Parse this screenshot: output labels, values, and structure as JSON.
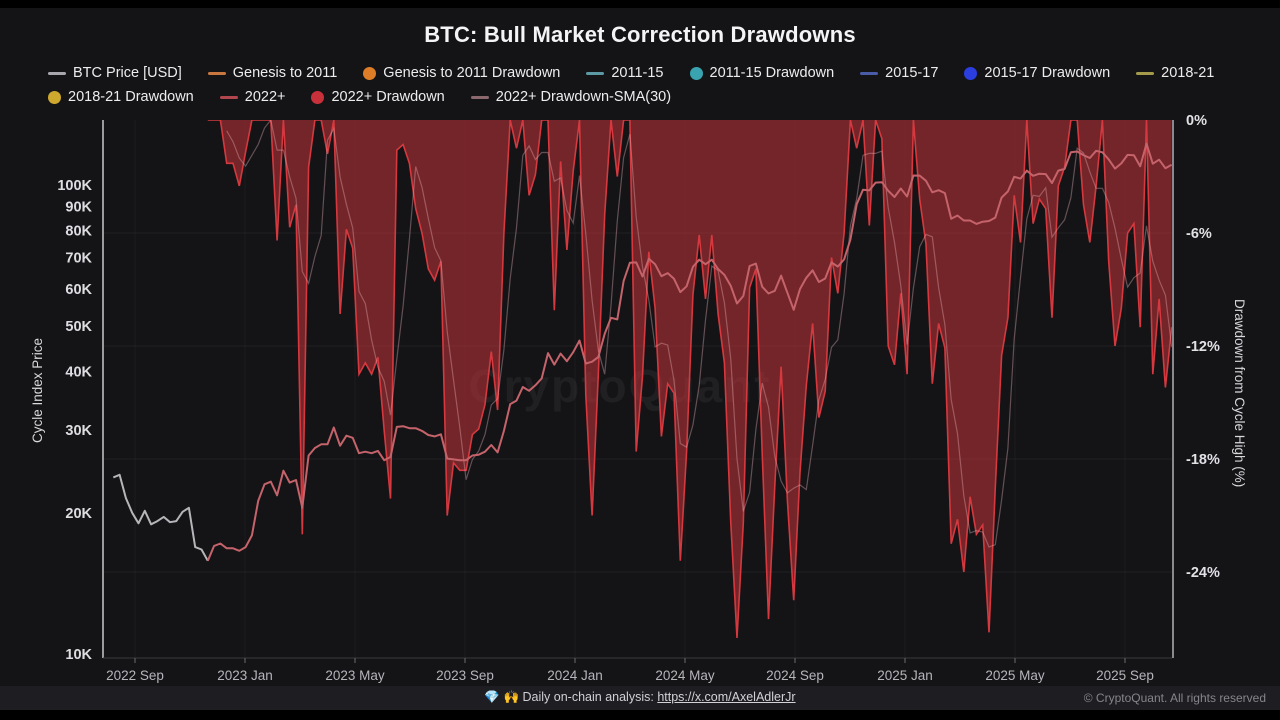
{
  "header": {
    "title": "BTC: Bull Market Correction Drawdowns"
  },
  "legend": [
    {
      "label": "BTC Price [USD]",
      "marker": "line",
      "color": "#a7a7ad",
      "row": 1
    },
    {
      "label": "Genesis to 2011",
      "marker": "line",
      "color": "#c8783f",
      "row": 1
    },
    {
      "label": "Genesis to 2011 Drawdown",
      "marker": "dot",
      "color": "#dd7d28",
      "row": 1
    },
    {
      "label": "2011-15",
      "marker": "line",
      "color": "#5d99a4",
      "row": 1
    },
    {
      "label": "2011-15 Drawdown",
      "marker": "dot",
      "color": "#39a3b0",
      "row": 1
    },
    {
      "label": "2015-17",
      "marker": "line",
      "color": "#4a5ca8",
      "row": 1
    },
    {
      "label": "2015-17 Drawdown",
      "marker": "dot",
      "color": "#2b3ee0",
      "row": 1
    },
    {
      "label": "2018-21",
      "marker": "line",
      "color": "#a39a4a",
      "row": 1
    },
    {
      "label": "2018-21 Drawdown",
      "marker": "dot",
      "color": "#cfa82e",
      "row": 2
    },
    {
      "label": "2022+",
      "marker": "line",
      "color": "#b2464e",
      "row": 2
    },
    {
      "label": "2022+ Drawdown",
      "marker": "dot",
      "color": "#c9313a",
      "row": 2
    },
    {
      "label": "2022+ Drawdown-SMA(30)",
      "marker": "line",
      "color": "#8a686e",
      "row": 2
    }
  ],
  "watermark": "CryptoQuant",
  "footer": {
    "icons": "💎 🙌",
    "analysis_prefix": "Daily on-chain analysis: ",
    "link": "https://x.com/AxelAdlerJr",
    "copyright": "© CryptoQuant. All rights reserved"
  },
  "chart_data": {
    "type": "line",
    "title": "BTC: Bull Market Correction Drawdowns",
    "grid": "faint horizontal at right-axis ticks",
    "legend_position": "top-left, two rows",
    "left_axis": {
      "label": "Cycle Index Price",
      "scale": "log",
      "unit": "USD",
      "range_usd": [
        10000,
        137000
      ],
      "ticks": [
        {
          "label": "100K",
          "k": 100
        },
        {
          "label": "90K",
          "k": 90
        },
        {
          "label": "80K",
          "k": 80
        },
        {
          "label": "70K",
          "k": 70
        },
        {
          "label": "60K",
          "k": 60
        },
        {
          "label": "50K",
          "k": 50
        },
        {
          "label": "40K",
          "k": 40
        },
        {
          "label": "30K",
          "k": 30
        },
        {
          "label": "20K",
          "k": 20
        },
        {
          "label": "10K",
          "k": 10
        }
      ]
    },
    "right_axis": {
      "label": "Drawdown from Cycle High (%)",
      "scale": "linear",
      "range_pct": [
        0,
        -28.6
      ],
      "ticks": [
        {
          "label": "0%",
          "pct": 0
        },
        {
          "label": "-6%",
          "pct": -6
        },
        {
          "label": "-12%",
          "pct": -12
        },
        {
          "label": "-18%",
          "pct": -18
        },
        {
          "label": "-24%",
          "pct": -24
        }
      ]
    },
    "x_axis": {
      "start_date": "2022-08-08",
      "step_days": 7,
      "points": 169,
      "tick_labels": [
        "2022 Sep",
        "2023 Jan",
        "2023 May",
        "2023 Sep",
        "2024 Jan",
        "2024 May",
        "2024 Sep",
        "2025 Jan",
        "2025 May",
        "2025 Sep"
      ]
    },
    "series": [
      {
        "name": "BTC Price [USD]",
        "axis": "left",
        "style": "line",
        "color": "#b6b6ba",
        "index_range": [
          0,
          15
        ],
        "note": "pre-cycle price, data key price_k_usd"
      },
      {
        "name": "2022+",
        "axis": "left",
        "style": "line",
        "color": "#c5636b",
        "index_range": [
          15,
          168
        ],
        "note": "2022+ cycle price, data key price_k_usd"
      },
      {
        "name": "2022+ Drawdown",
        "axis": "right",
        "style": "area-from-zero",
        "line_color": "#d5393f",
        "fill_color": "rgba(194,51,56,0.55)",
        "index_range": [
          15,
          168
        ],
        "note": "data key drawdown_pct"
      },
      {
        "name": "2022+ Drawdown-SMA(30)",
        "axis": "right",
        "style": "line",
        "color": "rgba(232,178,185,0.38)",
        "derived": "30-day SMA of 2022+ Drawdown"
      }
    ],
    "price_k_usd": [
      23.8,
      24.1,
      21.5,
      20.0,
      19.0,
      20.2,
      18.9,
      19.2,
      19.6,
      19.1,
      19.2,
      20.1,
      20.5,
      16.9,
      16.7,
      15.8,
      17.0,
      17.2,
      16.8,
      16.8,
      16.6,
      16.9,
      17.9,
      21.2,
      23.0,
      23.3,
      21.8,
      24.6,
      23.2,
      23.5,
      20.5,
      26.5,
      27.5,
      28.0,
      28.0,
      30.4,
      27.8,
      29.2,
      28.9,
      26.8,
      27.0,
      26.8,
      27.1,
      25.9,
      26.3,
      30.5,
      30.6,
      30.3,
      30.3,
      29.9,
      29.3,
      29.1,
      29.4,
      26.1,
      26.0,
      25.9,
      25.9,
      26.5,
      26.6,
      27.0,
      27.9,
      26.9,
      29.9,
      34.1,
      34.7,
      37.1,
      36.4,
      37.4,
      38.7,
      43.8,
      41.4,
      43.7,
      42.1,
      44.0,
      46.6,
      41.6,
      42.0,
      43.0,
      48.2,
      52.1,
      51.7,
      62.4,
      68.3,
      68.4,
      63.8,
      69.6,
      67.8,
      63.9,
      64.9,
      63.1,
      59.1,
      60.8,
      66.9,
      69.3,
      67.8,
      69.3,
      66.2,
      64.3,
      61.0,
      55.9,
      58.0,
      67.2,
      68.0,
      60.7,
      58.7,
      59.5,
      64.1,
      58.9,
      54.2,
      60.0,
      63.4,
      65.8,
      62.1,
      63.2,
      68.4,
      67.0,
      69.4,
      76.5,
      91.0,
      97.7,
      97.4,
      101.2,
      101.4,
      97.2,
      94.3,
      98.3,
      94.5,
      104.8,
      104.7,
      102.1,
      96.5,
      97.5,
      96.1,
      84.7,
      86.1,
      84.0,
      84.0,
      82.6,
      83.5,
      83.8,
      85.2,
      94.0,
      96.9,
      104.1,
      103.2,
      107.3,
      104.6,
      105.7,
      105.5,
      101.0,
      107.3,
      108.2,
      117.5,
      117.9,
      115.8,
      114.2,
      118.3,
      117.4,
      113.4,
      108.4,
      111.2,
      115.9,
      115.7,
      109.6,
      122.5,
      111.0,
      113.2,
      108.6,
      110.5
    ],
    "drawdown_pct": [
      null,
      null,
      null,
      null,
      null,
      null,
      null,
      null,
      null,
      null,
      null,
      null,
      null,
      null,
      null,
      0,
      0,
      0,
      -2.3,
      -2.3,
      -3.5,
      -1.7,
      0,
      0,
      0,
      0,
      -6.4,
      0,
      -5.7,
      -4.5,
      -22.0,
      -2.5,
      0,
      0,
      -1.8,
      0,
      -10.3,
      -5.8,
      -6.8,
      -13.5,
      -12.9,
      -13.5,
      -12.6,
      -16.5,
      -20.1,
      -1.6,
      -1.3,
      -2.3,
      -4.7,
      -6.0,
      -7.9,
      -8.5,
      -7.5,
      -21.0,
      -18.2,
      -18.6,
      -18.6,
      -16.7,
      -16.4,
      -15.1,
      -12.3,
      -15.4,
      -6.0,
      0,
      -1.5,
      0,
      -4.0,
      -2.9,
      0,
      0,
      -10.1,
      -2.2,
      -6.9,
      -2.7,
      0,
      -14.6,
      -21.0,
      -13.4,
      -5.0,
      0,
      -3.0,
      0,
      0,
      -17.6,
      -13.6,
      -7.0,
      -10.0,
      -16.8,
      -14.0,
      -14.5,
      -23.4,
      -17.6,
      -9.3,
      -6.1,
      -9.5,
      -6.1,
      -10.3,
      -12.9,
      -21.3,
      -27.5,
      -21.4,
      -8.9,
      -7.9,
      -17.7,
      -26.5,
      -19.4,
      -13.1,
      -20.2,
      -25.5,
      -18.7,
      -14.1,
      -10.8,
      -15.8,
      -14.4,
      -7.3,
      -9.2,
      -6.0,
      0,
      -1.5,
      0,
      -5.6,
      0,
      -1.0,
      -12.0,
      -13.0,
      -9.2,
      -13.5,
      0,
      -4.2,
      -6.6,
      -14.0,
      -10.8,
      -12.1,
      -22.5,
      -21.2,
      -24.0,
      -20.0,
      -22.0,
      -21.5,
      -27.2,
      -19.5,
      -12.5,
      -10.5,
      -4.0,
      -6.5,
      0,
      -5.5,
      -4.2,
      -4.7,
      -10.5,
      -3.5,
      -2.5,
      0,
      0,
      -4.5,
      -6.5,
      -3.5,
      0,
      -7.5,
      -12.0,
      -10.0,
      -6.0,
      -5.5,
      -11.0,
      0,
      -13.5,
      -9.5,
      -14.2,
      -11.0
    ]
  }
}
